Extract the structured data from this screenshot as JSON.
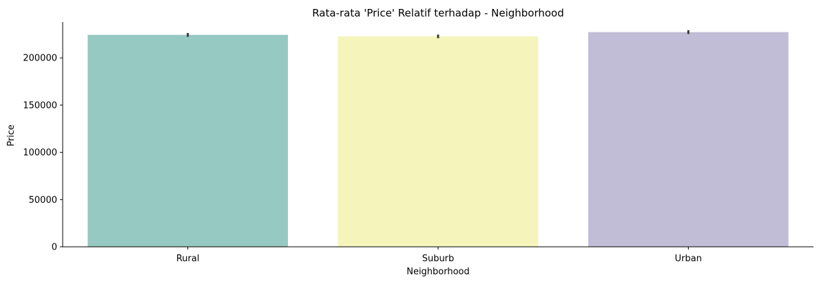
{
  "chart_data": {
    "type": "bar",
    "title": "Rata-rata 'Price' Relatif terhadap - Neighborhood",
    "xlabel": "Neighborhood",
    "ylabel": "Price",
    "categories": [
      "Rural",
      "Suburb",
      "Urban"
    ],
    "values": [
      224400,
      222800,
      227300
    ],
    "error_bars": [
      [
        222300,
        226400
      ],
      [
        220900,
        224700
      ],
      [
        225300,
        229300
      ]
    ],
    "colors": [
      "#96c9c1",
      "#f5f4bb",
      "#c1bdd6"
    ],
    "error_color": "#3a3a3a",
    "ylim": [
      0,
      238000
    ],
    "yticks": [
      0,
      50000,
      100000,
      150000,
      200000
    ],
    "grid": false
  }
}
